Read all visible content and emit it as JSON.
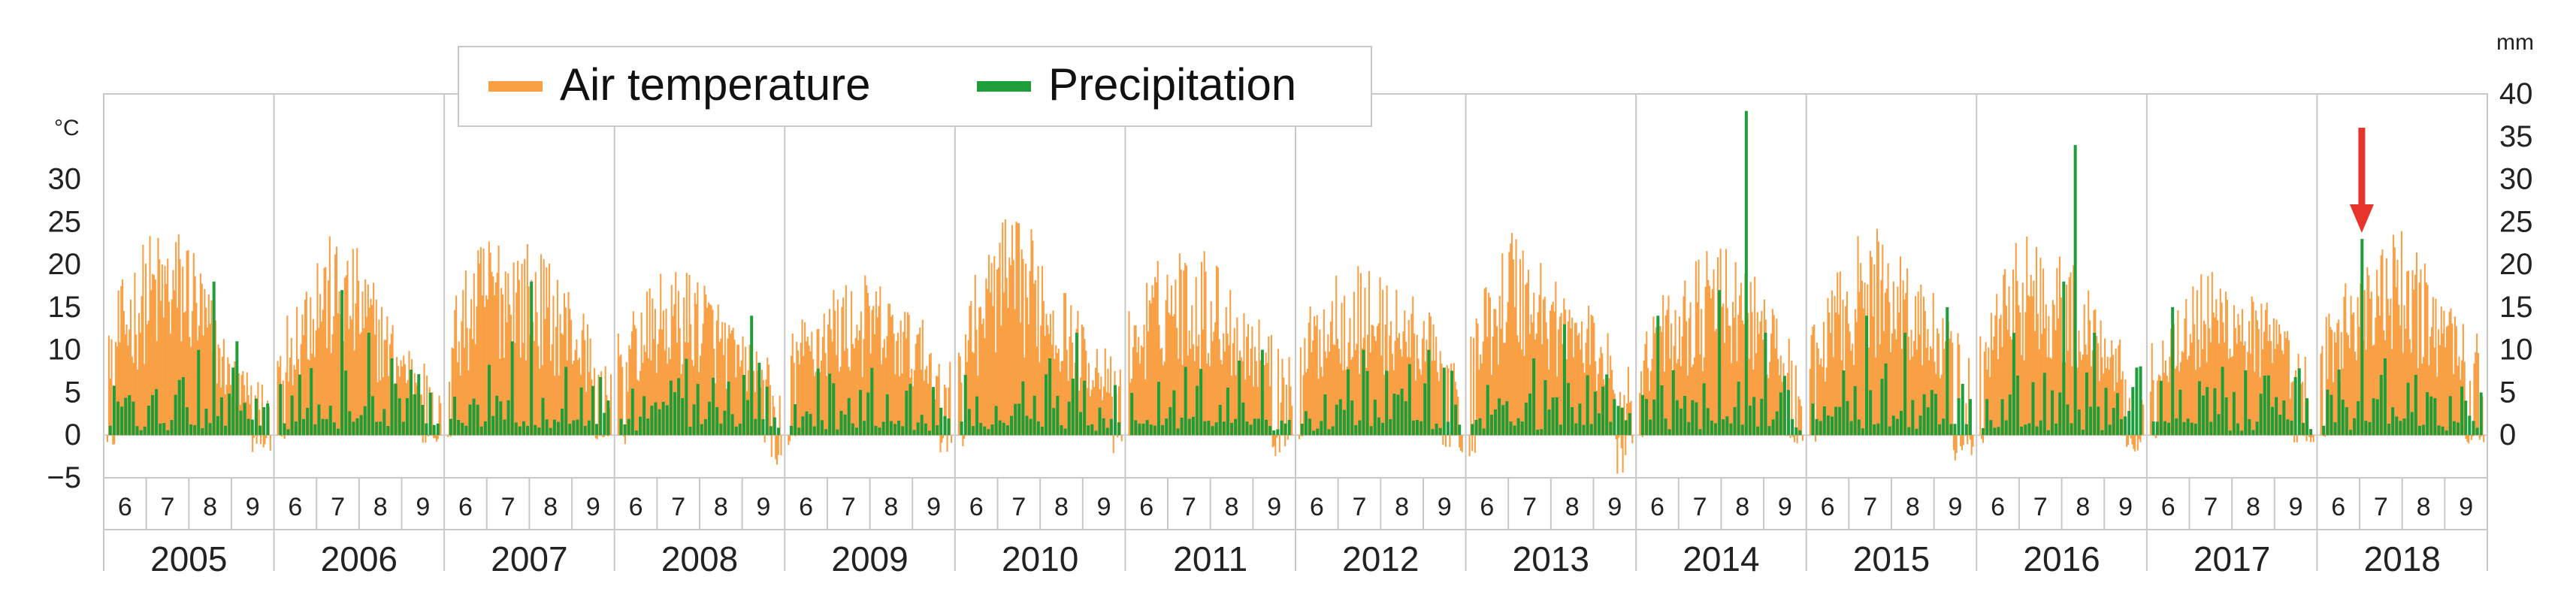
{
  "chart_data": {
    "type": "bar",
    "legend": {
      "placement": "top-left",
      "entries": [
        {
          "name": "Air temperature",
          "color": "#F9A045"
        },
        {
          "name": "Precipitation",
          "color": "#1E9E3A"
        }
      ]
    },
    "units": {
      "left": "°C",
      "right": "mm"
    },
    "left_axis": {
      "ylim": [
        -5,
        40
      ],
      "ticks": [
        -5,
        0,
        5,
        10,
        15,
        20,
        25,
        30
      ]
    },
    "right_axis": {
      "ylim": [
        -5,
        40
      ],
      "ticks": [
        0,
        5,
        10,
        15,
        20,
        25,
        30,
        35,
        40
      ]
    },
    "years": [
      "2005",
      "2006",
      "2007",
      "2008",
      "2009",
      "2010",
      "2011",
      "2012",
      "2013",
      "2014",
      "2015",
      "2016",
      "2017",
      "2018"
    ],
    "months": [
      "6",
      "7",
      "8",
      "9"
    ],
    "temperature_envelope": {
      "2005": [
        15,
        24,
        25,
        10,
        5
      ],
      "2006": [
        12,
        24,
        22,
        12,
        8
      ],
      "2007": [
        15,
        25,
        23,
        18,
        8
      ],
      "2008": [
        12,
        19,
        20,
        12,
        8
      ],
      "2009": [
        12,
        18,
        19,
        15,
        10
      ],
      "2010": [
        14,
        26,
        24,
        14,
        8
      ],
      "2011": [
        15,
        23,
        22,
        15,
        9
      ],
      "2012": [
        13,
        21,
        19,
        16,
        8
      ],
      "2013": [
        13,
        26,
        20,
        15,
        8
      ],
      "2014": [
        13,
        19,
        23,
        18,
        8
      ],
      "2015": [
        12,
        23,
        25,
        17,
        9
      ],
      "2016": [
        13,
        25,
        22,
        16,
        10
      ],
      "2017": [
        12,
        19,
        20,
        15,
        8
      ],
      "2018": [
        13,
        22,
        24,
        18,
        12
      ]
    },
    "temperature_min": {
      "2005": -3,
      "2006": -1,
      "2007": -0.5,
      "2008": -4,
      "2009": -3,
      "2010": -4.5,
      "2011": -3,
      "2012": -2,
      "2013": -5,
      "2014": -1,
      "2015": -3,
      "2016": -2,
      "2017": -1,
      "2018": -1
    },
    "precipitation_peaks": {
      "2005": [
        [
          0.55,
          10
        ],
        [
          0.66,
          18
        ],
        [
          0.8,
          11
        ]
      ],
      "2006": [
        [
          0.4,
          17
        ],
        [
          0.56,
          12
        ],
        [
          0.7,
          9
        ]
      ],
      "2007": [
        [
          0.4,
          11
        ],
        [
          0.52,
          18
        ],
        [
          0.74,
          8
        ]
      ],
      "2008": [
        [
          0.82,
          14
        ],
        [
          0.48,
          6
        ]
      ],
      "2009": [
        [
          0.48,
          5
        ],
        [
          0.75,
          6
        ]
      ],
      "2010": [
        [
          0.55,
          9
        ],
        [
          0.74,
          12
        ]
      ],
      "2011": [
        [
          0.35,
          8
        ],
        [
          0.82,
          10
        ]
      ],
      "2012": [
        [
          0.4,
          10
        ],
        [
          0.8,
          10
        ]
      ],
      "2013": [
        [
          0.58,
          13
        ],
        [
          0.4,
          9
        ]
      ],
      "2014": [
        [
          0.1,
          14
        ],
        [
          0.48,
          17
        ],
        [
          0.66,
          38
        ],
        [
          0.78,
          12
        ]
      ],
      "2015": [
        [
          0.35,
          14
        ],
        [
          0.58,
          12
        ],
        [
          0.86,
          15
        ]
      ],
      "2016": [
        [
          0.2,
          12
        ],
        [
          0.5,
          18
        ],
        [
          0.58,
          34
        ],
        [
          0.7,
          12
        ]
      ],
      "2017": [
        [
          0.12,
          15
        ],
        [
          0.45,
          8
        ],
        [
          0.72,
          7
        ]
      ],
      "2018": [
        [
          0.24,
          23
        ],
        [
          0.4,
          9
        ]
      ]
    },
    "arrow": {
      "year": "2018",
      "position": 0.24,
      "color": "#E8352B"
    }
  }
}
